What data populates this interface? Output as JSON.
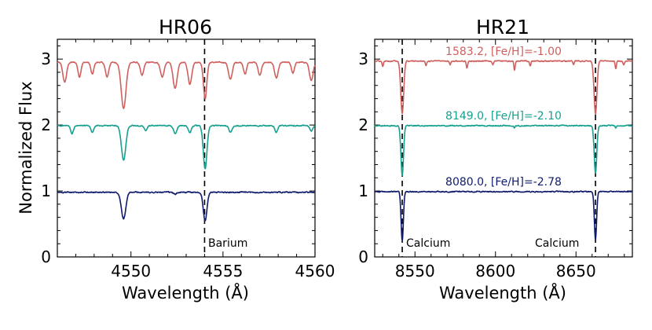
{
  "chart_data": [
    {
      "type": "line",
      "title": "HR06",
      "xlabel": "Wavelength (Å)",
      "ylabel": "Normalized Flux",
      "xlim": [
        4546.0,
        4560.0
      ],
      "ylim": [
        0,
        3.3
      ],
      "xticks": [
        4550,
        4555,
        4560
      ],
      "xtick_labels": [
        "4550",
        "4555",
        "4560"
      ],
      "yticks": [
        0,
        1,
        2,
        3
      ],
      "ytick_labels": [
        "0",
        "1",
        "2",
        "3"
      ],
      "vline": {
        "x": 4554.0,
        "label": "Barium"
      },
      "series": [
        {
          "name": "1583.2",
          "color": "#d0605e",
          "offset": 2.0,
          "continuum": 0.95,
          "lines": [
            {
              "center": 4546.4,
              "depth": 0.3,
              "width": 0.1
            },
            {
              "center": 4547.2,
              "depth": 0.22,
              "width": 0.08
            },
            {
              "center": 4547.9,
              "depth": 0.18,
              "width": 0.08
            },
            {
              "center": 4548.7,
              "depth": 0.22,
              "width": 0.09
            },
            {
              "center": 4549.6,
              "depth": 0.7,
              "width": 0.13
            },
            {
              "center": 4550.6,
              "depth": 0.2,
              "width": 0.09
            },
            {
              "center": 4551.7,
              "depth": 0.22,
              "width": 0.1
            },
            {
              "center": 4552.4,
              "depth": 0.4,
              "width": 0.11
            },
            {
              "center": 4553.2,
              "depth": 0.33,
              "width": 0.1
            },
            {
              "center": 4554.03,
              "depth": 0.55,
              "width": 0.09
            },
            {
              "center": 4555.4,
              "depth": 0.26,
              "width": 0.1
            },
            {
              "center": 4556.2,
              "depth": 0.18,
              "width": 0.08
            },
            {
              "center": 4557.0,
              "depth": 0.2,
              "width": 0.09
            },
            {
              "center": 4557.9,
              "depth": 0.24,
              "width": 0.1
            },
            {
              "center": 4558.8,
              "depth": 0.16,
              "width": 0.08
            },
            {
              "center": 4559.8,
              "depth": 0.28,
              "width": 0.1
            }
          ]
        },
        {
          "name": "8149.0",
          "color": "#17a08f",
          "offset": 1.0,
          "continuum": 0.99,
          "lines": [
            {
              "center": 4546.8,
              "depth": 0.12,
              "width": 0.08
            },
            {
              "center": 4547.9,
              "depth": 0.1,
              "width": 0.08
            },
            {
              "center": 4549.6,
              "depth": 0.52,
              "width": 0.12
            },
            {
              "center": 4550.8,
              "depth": 0.08,
              "width": 0.08
            },
            {
              "center": 4552.4,
              "depth": 0.12,
              "width": 0.09
            },
            {
              "center": 4553.2,
              "depth": 0.1,
              "width": 0.08
            },
            {
              "center": 4554.03,
              "depth": 0.65,
              "width": 0.1
            },
            {
              "center": 4555.4,
              "depth": 0.1,
              "width": 0.08
            },
            {
              "center": 4557.9,
              "depth": 0.1,
              "width": 0.08
            },
            {
              "center": 4559.8,
              "depth": 0.08,
              "width": 0.08
            }
          ]
        },
        {
          "name": "8080.0",
          "color": "#0e1a6b",
          "offset": 0.0,
          "continuum": 0.98,
          "lines": [
            {
              "center": 4549.6,
              "depth": 0.4,
              "width": 0.12
            },
            {
              "center": 4554.03,
              "depth": 0.43,
              "width": 0.1
            },
            {
              "center": 4552.4,
              "depth": 0.03,
              "width": 0.08
            }
          ]
        }
      ]
    },
    {
      "type": "line",
      "title": "HR21",
      "xlabel": "Wavelength (Å)",
      "ylabel": "",
      "xlim": [
        8525,
        8685
      ],
      "ylim": [
        0,
        3.3
      ],
      "xticks": [
        8550,
        8600,
        8650
      ],
      "xtick_labels": [
        "8550",
        "8600",
        "8650"
      ],
      "yticks": [
        0,
        1,
        2,
        3
      ],
      "ytick_labels": [
        "0",
        "1",
        "2",
        "3"
      ],
      "vlines": [
        {
          "x": 8542.1,
          "label": "Calcium"
        },
        {
          "x": 8662.1,
          "label": "Calcium"
        }
      ],
      "series": [
        {
          "name": "1583.2",
          "label": "1583.2,  [Fe/H]=-1.00",
          "color": "#d0605e",
          "offset": 2.0,
          "continuum": 0.97,
          "lines": [
            {
              "center": 8542.1,
              "depth": 0.8,
              "width": 0.9
            },
            {
              "center": 8662.1,
              "depth": 0.8,
              "width": 0.9
            },
            {
              "center": 8530.0,
              "depth": 0.08,
              "width": 0.4
            },
            {
              "center": 8556.8,
              "depth": 0.08,
              "width": 0.4
            },
            {
              "center": 8571.8,
              "depth": 0.06,
              "width": 0.4
            },
            {
              "center": 8582.3,
              "depth": 0.1,
              "width": 0.4
            },
            {
              "center": 8598.4,
              "depth": 0.06,
              "width": 0.4
            },
            {
              "center": 8611.8,
              "depth": 0.14,
              "width": 0.4
            },
            {
              "center": 8621.6,
              "depth": 0.08,
              "width": 0.4
            },
            {
              "center": 8648.5,
              "depth": 0.06,
              "width": 0.4
            },
            {
              "center": 8674.7,
              "depth": 0.12,
              "width": 0.4
            },
            {
              "center": 8679.6,
              "depth": 0.06,
              "width": 0.4
            }
          ]
        },
        {
          "name": "8149.0",
          "label": "8149.0,  [Fe/H]=-2.10",
          "color": "#17a08f",
          "offset": 1.0,
          "continuum": 0.99,
          "lines": [
            {
              "center": 8542.1,
              "depth": 0.75,
              "width": 0.8
            },
            {
              "center": 8662.1,
              "depth": 0.72,
              "width": 0.8
            },
            {
              "center": 8611.8,
              "depth": 0.04,
              "width": 0.4
            },
            {
              "center": 8674.7,
              "depth": 0.04,
              "width": 0.4
            }
          ]
        },
        {
          "name": "8080.0",
          "label": "8080.0,  [Fe/H]=-2.78",
          "color": "#0e1a6b",
          "offset": 0.0,
          "continuum": 0.99,
          "lines": [
            {
              "center": 8542.1,
              "depth": 0.75,
              "width": 0.7
            },
            {
              "center": 8662.1,
              "depth": 0.72,
              "width": 0.7
            }
          ]
        }
      ]
    }
  ]
}
